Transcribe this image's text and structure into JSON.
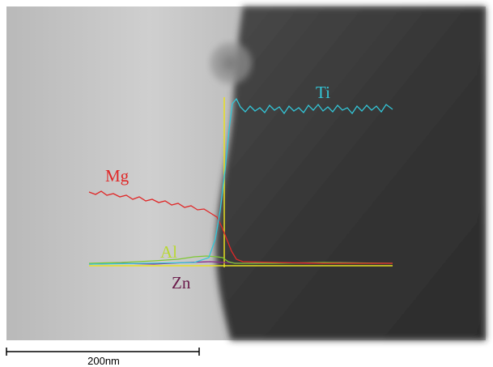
{
  "labels": {
    "ti": "Ti",
    "mg": "Mg",
    "al": "Al",
    "zn": "Zn"
  },
  "scale_bar": {
    "label": "200nm"
  }
}
